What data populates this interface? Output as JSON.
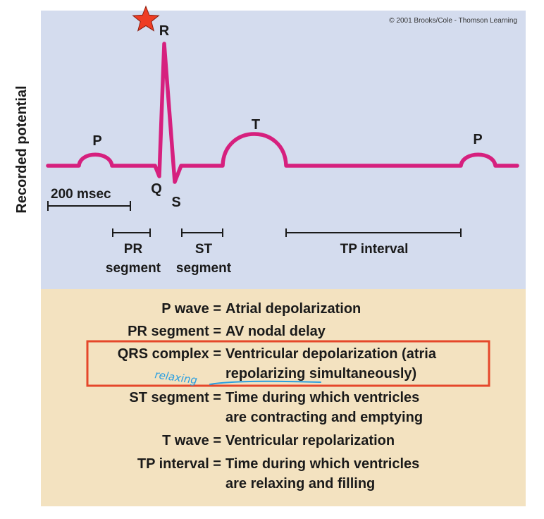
{
  "copyright": "© 2001 Brooks/Cole - Thomson Learning",
  "y_axis_label": "Recorded potential",
  "wave_labels": {
    "p1": "P",
    "r": "R",
    "q": "Q",
    "s": "S",
    "t": "T",
    "p2": "P"
  },
  "scale_bar_label": "200 msec",
  "segments": {
    "pr": {
      "line1": "PR",
      "line2": "segment"
    },
    "st": {
      "line1": "ST",
      "line2": "segment"
    },
    "tp": {
      "line1": "TP interval"
    }
  },
  "definitions": [
    {
      "term": "P wave =",
      "lines": [
        "Atrial depolarization"
      ]
    },
    {
      "term": "PR segment =",
      "lines": [
        "AV nodal delay"
      ]
    },
    {
      "term": "QRS complex =",
      "lines": [
        "Ventricular depolarization (atria",
        "repolarizing simultaneously)"
      ]
    },
    {
      "term": "ST segment =",
      "lines": [
        "Time during which ventricles",
        "are contracting and emptying"
      ]
    },
    {
      "term": "T wave =",
      "lines": [
        "Ventricular repolarization"
      ]
    },
    {
      "term": "TP interval =",
      "lines": [
        "Time during which ventricles",
        "are relaxing and filling"
      ]
    }
  ],
  "annotation": {
    "handwritten": "relaxing"
  },
  "colors": {
    "top_panel": "#d4dcee",
    "bottom_panel": "#f3e2c0",
    "ecg_trace": "#d6207e",
    "highlight_box": "#e5472a",
    "star": "#ee3d24",
    "handwriting": "#2a9fe0"
  }
}
